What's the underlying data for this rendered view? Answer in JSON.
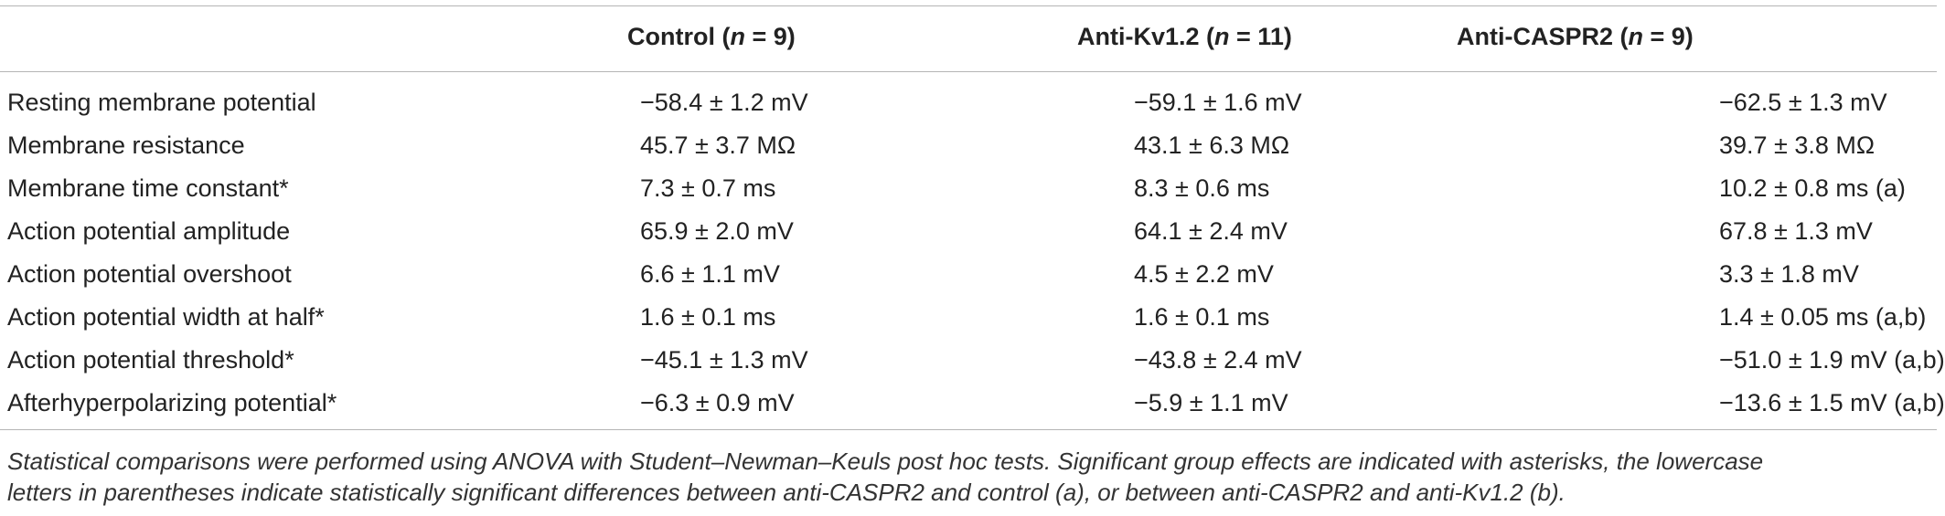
{
  "table": {
    "header": [
      [
        "Control (",
        "n",
        " = 9)"
      ],
      [
        "Anti-Kv1.2 (",
        "n",
        " = 11)"
      ],
      [
        "Anti-CASPR2 (",
        "n",
        " = 9)"
      ]
    ],
    "rows": [
      [
        "Resting membrane potential",
        "−58.4 ± 1.2 mV",
        "−59.1 ± 1.6 mV",
        "−62.5 ± 1.3 mV"
      ],
      [
        "Membrane resistance",
        "45.7 ± 3.7 MΩ",
        "43.1 ± 6.3 MΩ",
        "39.7 ± 3.8 MΩ"
      ],
      [
        "Membrane time constant*",
        "7.3 ± 0.7 ms",
        "8.3 ± 0.6 ms",
        "10.2 ± 0.8 ms (a)"
      ],
      [
        "Action potential amplitude",
        "65.9 ± 2.0 mV",
        "64.1 ± 2.4 mV",
        "67.8 ± 1.3 mV"
      ],
      [
        "Action potential overshoot",
        "6.6 ± 1.1 mV",
        "4.5 ± 2.2 mV",
        "3.3 ± 1.8 mV"
      ],
      [
        "Action potential width at half*",
        "1.6 ± 0.1 ms",
        "1.6 ± 0.1 ms",
        "1.4 ± 0.05 ms (a,b)"
      ],
      [
        "Action potential threshold*",
        "−45.1 ± 1.3 mV",
        "−43.8 ± 2.4 mV",
        "−51.0 ± 1.9 mV (a,b)"
      ],
      [
        "Afterhyperpolarizing potential*",
        "−6.3 ± 0.9 mV",
        "−5.9 ± 1.1 mV",
        "−13.6 ± 1.5 mV (a,b)"
      ]
    ]
  },
  "footnote": [
    "Statistical comparisons were performed using ANOVA with Student–Newman–Keuls post hoc tests. Significant group effects are indicated with asterisks, the lowercase",
    "letters in parentheses indicate statistically significant differences between anti-CASPR2 and control (a), or between anti-CASPR2 and anti-Kv1.2 (b)."
  ]
}
